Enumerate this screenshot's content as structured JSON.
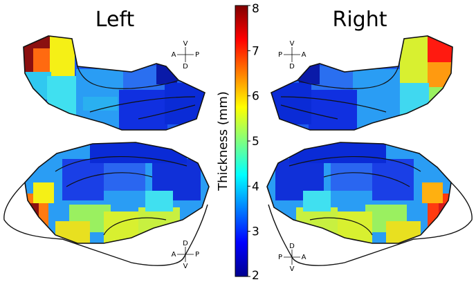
{
  "titles": {
    "left": "Left",
    "right": "Right"
  },
  "colorbar": {
    "label": "Thickness (mm)",
    "ticks": [
      "8",
      "7",
      "6",
      "5",
      "4",
      "3",
      "2"
    ],
    "min": 2,
    "max": 8,
    "colormap": "jet"
  },
  "orientation": {
    "left_top": {
      "up": "V",
      "down": "D",
      "left": "A",
      "right": "P"
    },
    "left_bottom": {
      "up": "D",
      "down": "V",
      "left": "A",
      "right": "P"
    },
    "right_top": {
      "up": "V",
      "down": "D",
      "left": "P",
      "right": "A"
    },
    "right_bottom": {
      "up": "D",
      "down": "V",
      "left": "P",
      "right": "A"
    }
  },
  "colors": {
    "outline": "#1a1a1a",
    "deep_blue": "#0a2bd6",
    "light_blue": "#2a9df4",
    "cyan": "#40e0f0",
    "yellow": "#f5f016",
    "orange": "#ff8c1a",
    "red": "#d61a1a"
  }
}
